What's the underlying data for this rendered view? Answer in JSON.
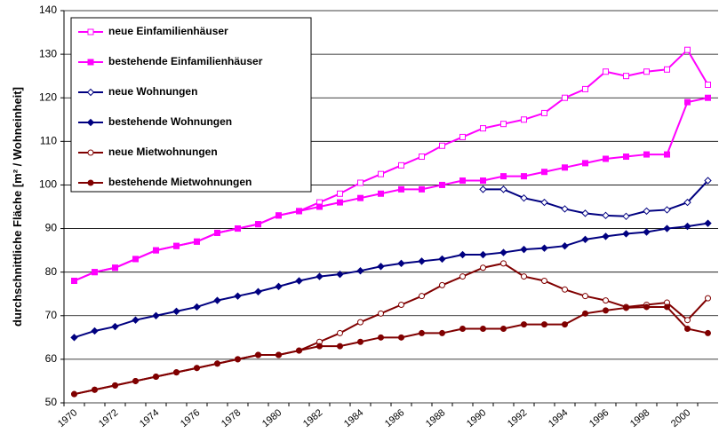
{
  "chart_data": {
    "type": "line",
    "y_label": "durchschnittliche Fläche [m² / Wohneinheit]",
    "categories": [
      "1970",
      null,
      "1972",
      null,
      "1974",
      null,
      "1976",
      null,
      "1978",
      null,
      "1980",
      null,
      "1982",
      null,
      "1984",
      null,
      "1986",
      null,
      "1988",
      null,
      "1990",
      null,
      "1992",
      null,
      "1994",
      null,
      "1996",
      null,
      "1998",
      null,
      "2000",
      null
    ],
    "ylim": [
      50,
      140
    ],
    "yticks": [
      50,
      60,
      70,
      80,
      90,
      100,
      110,
      120,
      130,
      140
    ],
    "grid": true,
    "series": [
      {
        "name": "neue Einfamilienhäuser",
        "color": "#ff00ff",
        "marker": "open-square",
        "values": [
          78,
          80,
          81,
          83,
          85,
          86,
          87,
          89,
          90,
          91,
          93,
          94,
          96,
          98,
          100.5,
          102.5,
          104.5,
          106.5,
          109,
          111,
          113,
          114,
          115,
          116.5,
          120,
          122,
          126,
          125,
          126,
          126.5,
          131,
          123
        ]
      },
      {
        "name": "bestehende Einfamilienhäuser",
        "color": "#ff00ff",
        "marker": "square",
        "values": [
          78,
          80,
          81,
          83,
          85,
          86,
          87,
          89,
          90,
          91,
          93,
          94,
          95,
          96,
          97,
          98,
          99,
          99,
          100,
          101,
          101,
          102,
          102,
          103,
          104,
          105,
          106,
          106.5,
          107,
          107,
          119,
          120
        ]
      },
      {
        "name": "neue Wohnungen",
        "color": "#000080",
        "marker": "open-diamond",
        "values": [
          null,
          null,
          null,
          null,
          null,
          null,
          null,
          null,
          null,
          null,
          null,
          null,
          null,
          null,
          null,
          null,
          null,
          null,
          null,
          null,
          99,
          99,
          97,
          96,
          94.5,
          93.5,
          93,
          92.8,
          94,
          94.3,
          96,
          101
        ]
      },
      {
        "name": "bestehende Wohnungen",
        "color": "#000080",
        "marker": "diamond",
        "values": [
          65,
          66.5,
          67.5,
          69,
          70,
          71,
          72,
          73.5,
          74.5,
          75.5,
          76.7,
          78,
          79,
          79.5,
          80.3,
          81.3,
          82,
          82.5,
          83,
          84,
          84,
          84.5,
          85.2,
          85.5,
          86,
          87.5,
          88.2,
          88.8,
          89.2,
          90,
          90.5,
          91.2
        ]
      },
      {
        "name": "neue Mietwohnungen",
        "color": "#800000",
        "marker": "open-circle",
        "values": [
          52,
          53,
          54,
          55,
          56,
          57,
          58,
          59,
          60,
          61,
          61,
          62,
          64,
          66,
          68.5,
          70.5,
          72.5,
          74.5,
          77,
          79,
          81,
          82,
          79,
          78,
          76,
          74.5,
          73.5,
          72,
          72.5,
          73,
          69,
          74
        ]
      },
      {
        "name": "bestehende Mietwohnungen",
        "color": "#800000",
        "marker": "circle",
        "values": [
          52,
          53,
          54,
          55,
          56,
          57,
          58,
          59,
          60,
          61,
          61,
          62,
          63,
          63,
          64,
          65,
          65,
          66,
          66,
          67,
          67,
          67,
          68,
          68,
          68,
          70.5,
          71.2,
          71.8,
          72,
          72,
          67,
          66
        ]
      }
    ]
  }
}
